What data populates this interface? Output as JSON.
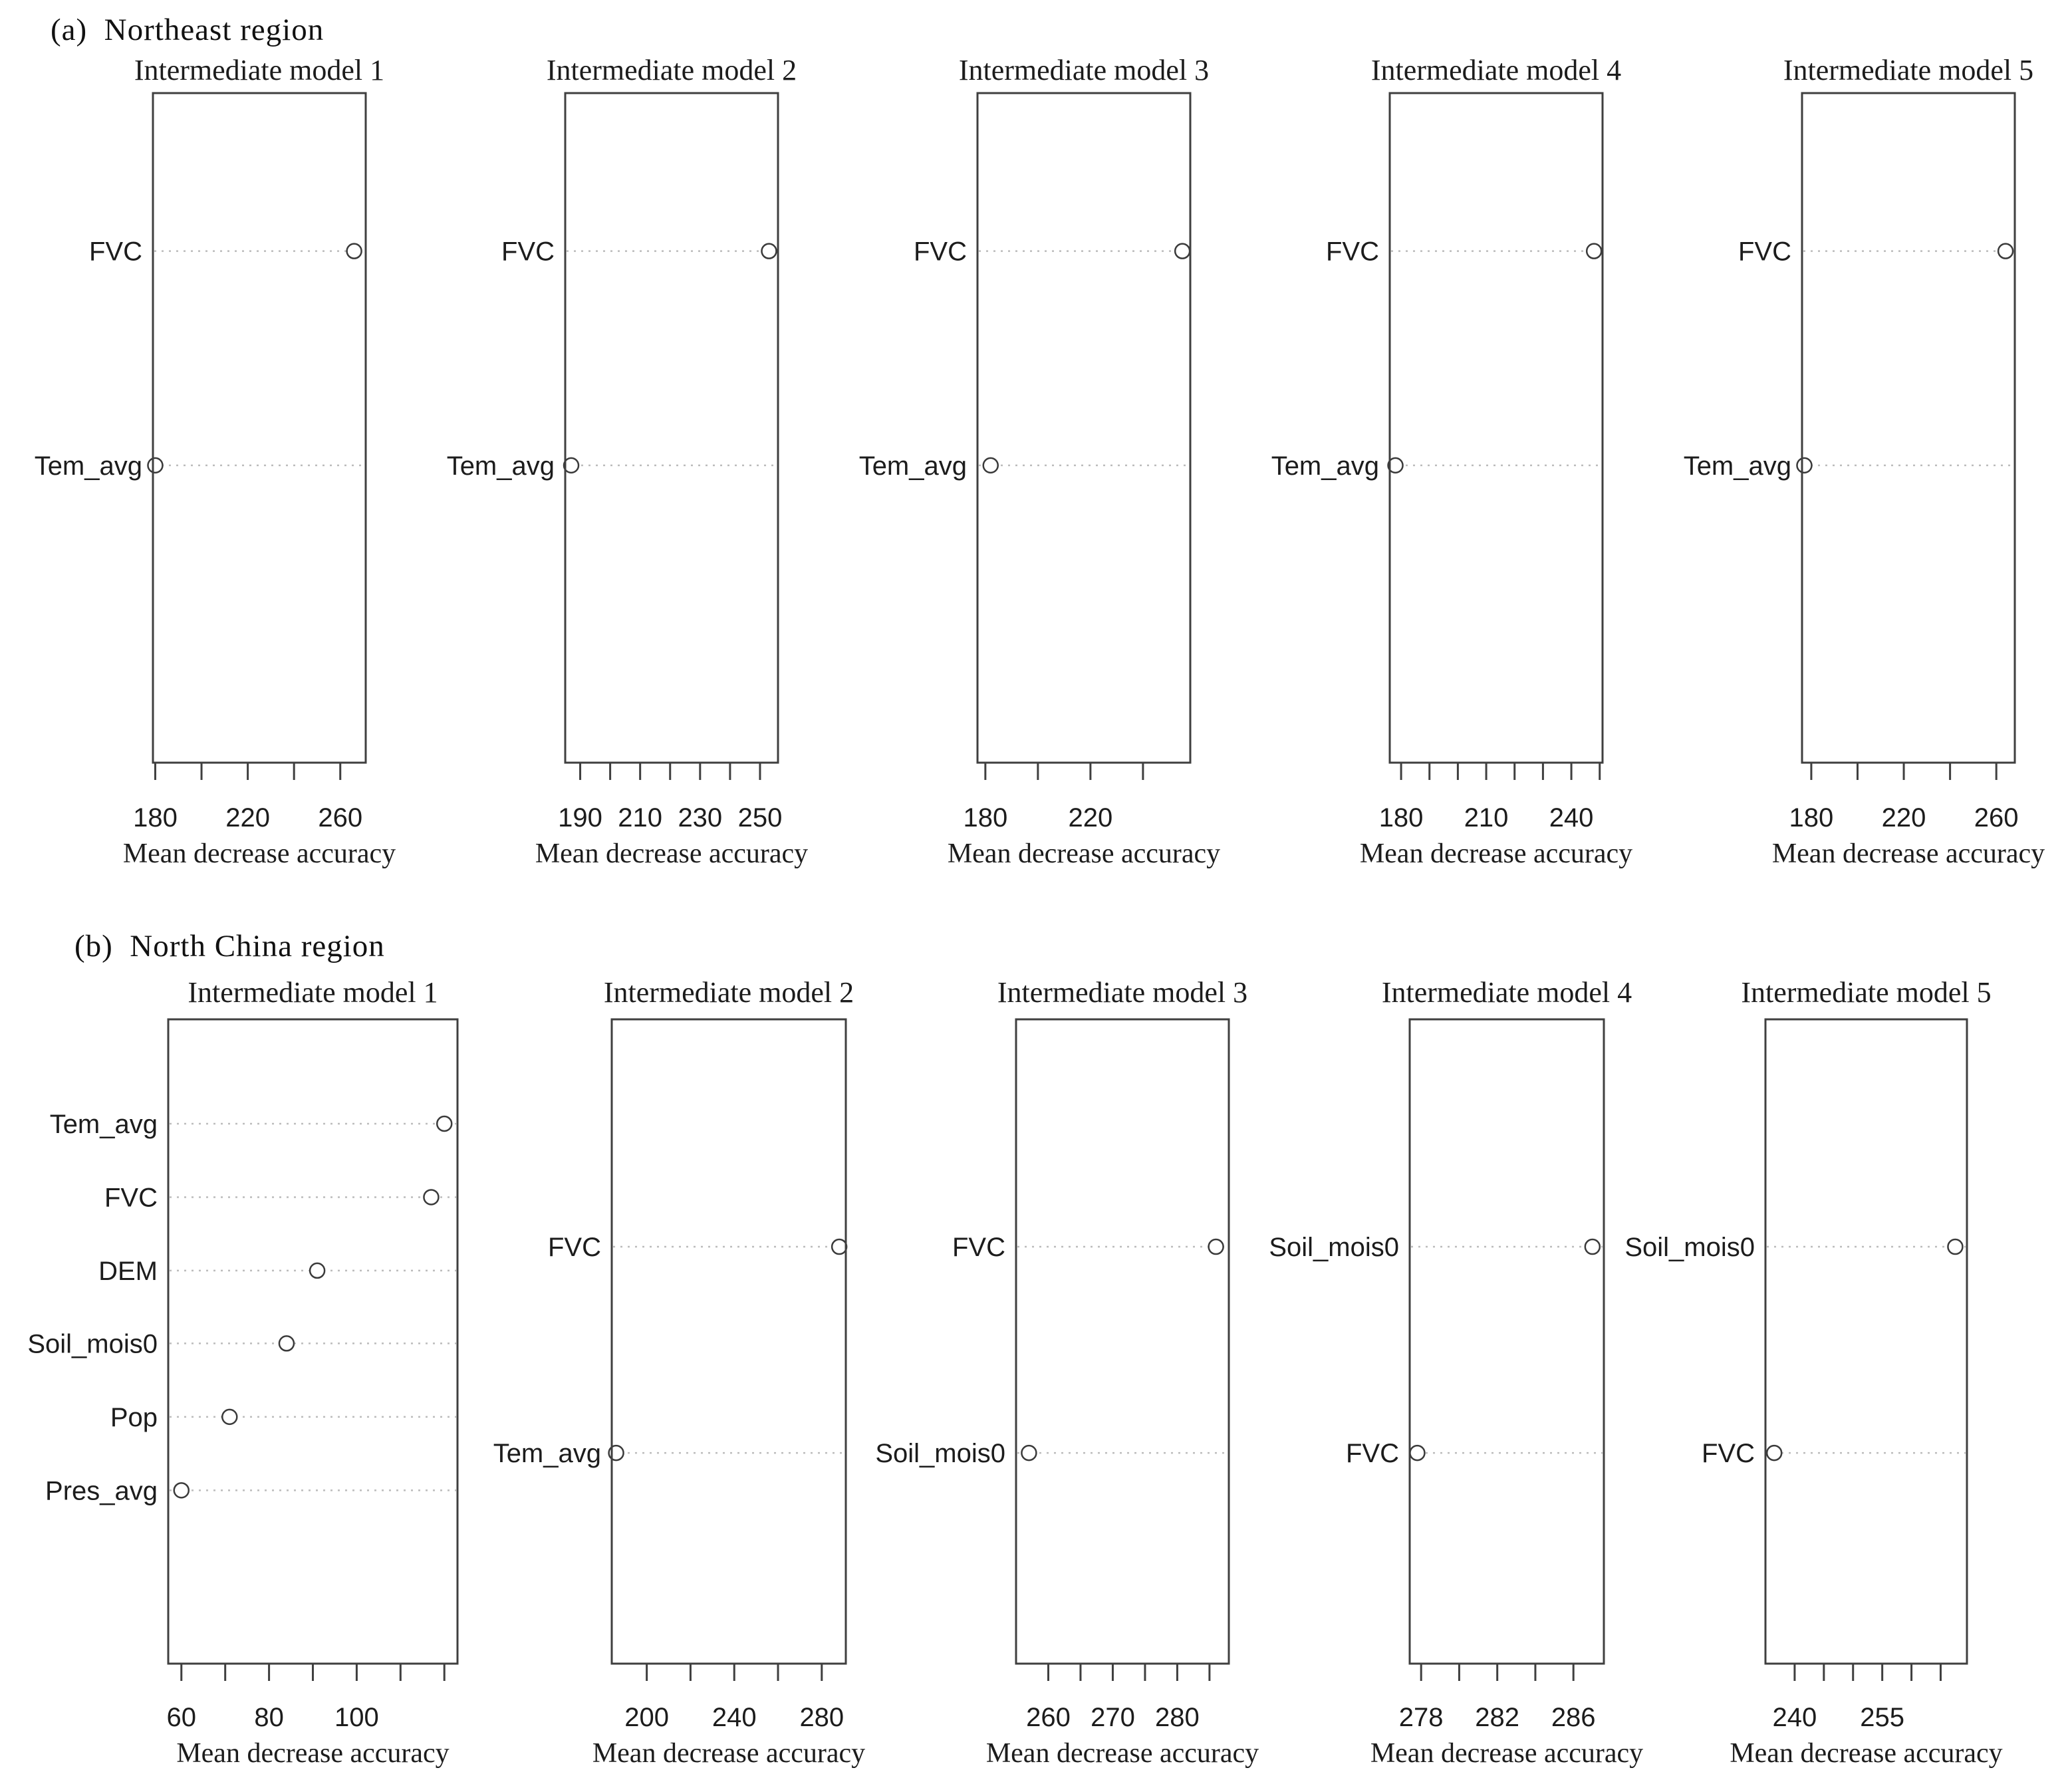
{
  "sections": [
    {
      "id": "a",
      "label": "(a)  Northeast region"
    },
    {
      "id": "b",
      "label": "(b)  North China region"
    }
  ],
  "colors": {
    "box_stroke": "#3f3f3f",
    "dotted_line": "#bcbcbc",
    "point_stroke": "#3a3a3a",
    "point_fill": "#ffffff",
    "text": "#1c1c1c"
  },
  "chart_data": [
    {
      "id": "a1",
      "section": "a",
      "type": "scatter",
      "title": "Intermediate model 1",
      "xlabel": "Mean decrease accuracy",
      "categories": [
        "FVC",
        "Tem_avg"
      ],
      "values": [
        266,
        180
      ],
      "xlim": [
        179,
        271
      ],
      "xticks": [
        180,
        200,
        220,
        240,
        260
      ],
      "xtick_labels": [
        "180",
        "",
        "220",
        "",
        "260"
      ],
      "grid": "dotted-row-lines",
      "legend": "none"
    },
    {
      "id": "a2",
      "section": "a",
      "type": "scatter",
      "title": "Intermediate model 2",
      "xlabel": "Mean decrease accuracy",
      "categories": [
        "FVC",
        "Tem_avg"
      ],
      "values": [
        253,
        187
      ],
      "xlim": [
        185,
        256
      ],
      "xticks": [
        190,
        200,
        210,
        220,
        230,
        240,
        250
      ],
      "xtick_labels": [
        "190",
        "",
        "210",
        "",
        "230",
        "",
        "250"
      ],
      "grid": "dotted-row-lines",
      "legend": "none"
    },
    {
      "id": "a3",
      "section": "a",
      "type": "scatter",
      "title": "Intermediate model 3",
      "xlabel": "Mean decrease accuracy",
      "categories": [
        "FVC",
        "Tem_avg"
      ],
      "values": [
        255,
        182
      ],
      "xlim": [
        177,
        258
      ],
      "xticks": [
        180,
        200,
        220,
        240
      ],
      "xtick_labels": [
        "180",
        "",
        "220",
        ""
      ],
      "grid": "dotted-row-lines",
      "legend": "none"
    },
    {
      "id": "a4",
      "section": "a",
      "type": "scatter",
      "title": "Intermediate model 4",
      "xlabel": "Mean decrease accuracy",
      "categories": [
        "FVC",
        "Tem_avg"
      ],
      "values": [
        248,
        178
      ],
      "xlim": [
        176,
        251
      ],
      "xticks": [
        180,
        190,
        200,
        210,
        220,
        230,
        240,
        250
      ],
      "xtick_labels": [
        "180",
        "",
        "",
        "210",
        "",
        "",
        "240",
        ""
      ],
      "grid": "dotted-row-lines",
      "legend": "none"
    },
    {
      "id": "a5",
      "section": "a",
      "type": "scatter",
      "title": "Intermediate model 5",
      "xlabel": "Mean decrease accuracy",
      "categories": [
        "FVC",
        "Tem_avg"
      ],
      "values": [
        264,
        177
      ],
      "xlim": [
        176,
        268
      ],
      "xticks": [
        180,
        200,
        220,
        240,
        260
      ],
      "xtick_labels": [
        "180",
        "",
        "220",
        "",
        "260"
      ],
      "grid": "dotted-row-lines",
      "legend": "none"
    },
    {
      "id": "b1",
      "section": "b",
      "type": "scatter",
      "title": "Intermediate model 1",
      "xlabel": "Mean decrease accuracy",
      "categories": [
        "Tem_avg",
        "FVC",
        "DEM",
        "Soil_mois0",
        "Pop",
        "Pres_avg"
      ],
      "values": [
        120,
        117,
        91,
        84,
        71,
        60
      ],
      "xlim": [
        57,
        123
      ],
      "xticks": [
        60,
        70,
        80,
        90,
        100,
        110,
        120
      ],
      "xtick_labels": [
        "60",
        "",
        "80",
        "",
        "100",
        "",
        ""
      ],
      "grid": "dotted-row-lines",
      "legend": "none"
    },
    {
      "id": "b2",
      "section": "b",
      "type": "scatter",
      "title": "Intermediate model 2",
      "xlabel": "Mean decrease accuracy",
      "categories": [
        "FVC",
        "Tem_avg"
      ],
      "values": [
        288,
        186
      ],
      "xlim": [
        184,
        291
      ],
      "xticks": [
        200,
        220,
        240,
        260,
        280
      ],
      "xtick_labels": [
        "200",
        "",
        "240",
        "",
        "280"
      ],
      "grid": "dotted-row-lines",
      "legend": "none"
    },
    {
      "id": "b3",
      "section": "b",
      "type": "scatter",
      "title": "Intermediate model 3",
      "xlabel": "Mean decrease accuracy",
      "categories": [
        "FVC",
        "Soil_mois0"
      ],
      "values": [
        286,
        257
      ],
      "xlim": [
        255,
        288
      ],
      "xticks": [
        260,
        265,
        270,
        275,
        280,
        285
      ],
      "xtick_labels": [
        "260",
        "",
        "270",
        "",
        "280",
        ""
      ],
      "grid": "dotted-row-lines",
      "legend": "none"
    },
    {
      "id": "b4",
      "section": "b",
      "type": "scatter",
      "title": "Intermediate model 4",
      "xlabel": "Mean decrease accuracy",
      "categories": [
        "Soil_mois0",
        "FVC"
      ],
      "values": [
        287,
        277.8
      ],
      "xlim": [
        277.4,
        287.6
      ],
      "xticks": [
        278,
        280,
        282,
        284,
        286
      ],
      "xtick_labels": [
        "278",
        "",
        "282",
        "",
        "286"
      ],
      "grid": "dotted-row-lines",
      "legend": "none"
    },
    {
      "id": "b5",
      "section": "b",
      "type": "scatter",
      "title": "Intermediate model 5",
      "xlabel": "Mean decrease accuracy",
      "categories": [
        "Soil_mois0",
        "FVC"
      ],
      "values": [
        267.5,
        236.5
      ],
      "xlim": [
        235,
        269.5
      ],
      "xticks": [
        240,
        245,
        250,
        255,
        260,
        265
      ],
      "xtick_labels": [
        "240",
        "",
        "",
        "255",
        "",
        ""
      ],
      "grid": "dotted-row-lines",
      "legend": "none"
    }
  ]
}
